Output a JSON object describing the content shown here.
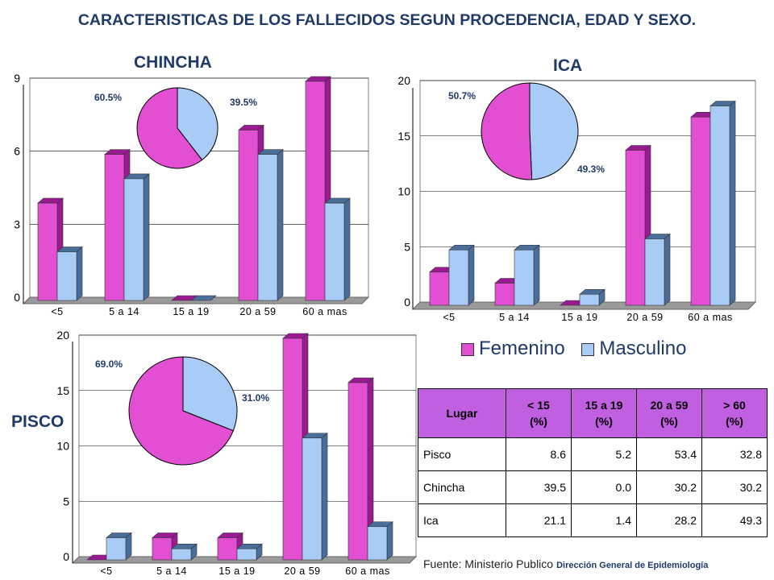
{
  "title": "CARACTERISTICAS DE LOS FALLECIDOS SEGUN PROCEDENCIA, EDAD Y SEXO.",
  "colors": {
    "femenino": "#E24FD3",
    "femenino_dark": "#9A1A92",
    "masculino": "#A9CCF7",
    "masculino_dark": "#4A6E9A",
    "title": "#1F3A68"
  },
  "legend": [
    "Femenino",
    "Masculino"
  ],
  "chart_data": [
    {
      "type": "bar",
      "title": "CHINCHA",
      "categories": [
        "<5",
        "5 a 14",
        "15 a 19",
        "20 a 59",
        "60 a mas"
      ],
      "series": [
        {
          "name": "Femenino",
          "values": [
            4,
            6,
            0,
            7,
            9
          ]
        },
        {
          "name": "Masculino",
          "values": [
            2,
            5,
            0,
            6,
            4
          ]
        }
      ],
      "ylim": [
        0,
        9
      ],
      "yticks": [
        "0",
        "3",
        "6",
        "9"
      ],
      "pie": {
        "values": [
          60.5,
          39.5
        ],
        "labels": [
          "60.5%",
          "39.5%"
        ]
      }
    },
    {
      "type": "bar",
      "title": "ICA",
      "categories": [
        "<5",
        "5 a 14",
        "15 a 19",
        "20 a 59",
        "60 a mas"
      ],
      "series": [
        {
          "name": "Femenino",
          "values": [
            3,
            2,
            0,
            14,
            17
          ]
        },
        {
          "name": "Masculino",
          "values": [
            5,
            5,
            1,
            6,
            18
          ]
        }
      ],
      "ylim": [
        0,
        20
      ],
      "yticks": [
        "0",
        "5",
        "10",
        "15",
        "20"
      ],
      "pie": {
        "values": [
          50.7,
          49.3
        ],
        "labels": [
          "50.7%",
          "49.3%"
        ]
      }
    },
    {
      "type": "bar",
      "title": "PISCO",
      "categories": [
        "<5",
        "5 a 14",
        "15 a 19",
        "20 a 59",
        "60 a mas"
      ],
      "series": [
        {
          "name": "Femenino",
          "values": [
            0,
            2,
            2,
            20,
            16
          ]
        },
        {
          "name": "Masculino",
          "values": [
            2,
            1,
            1,
            11,
            3
          ]
        }
      ],
      "ylim": [
        0,
        20
      ],
      "yticks": [
        "0",
        "5",
        "10",
        "15",
        "20"
      ],
      "pie": {
        "values": [
          69.0,
          31.0
        ],
        "labels": [
          "69.0%",
          "31.0%"
        ]
      }
    },
    {
      "type": "table",
      "headers": [
        [
          "Lugar"
        ],
        [
          "< 15",
          "(%)"
        ],
        [
          "15 a 19",
          "(%)"
        ],
        [
          "20 a 59",
          "(%)"
        ],
        [
          "> 60",
          "(%)"
        ]
      ],
      "rows": [
        [
          "Pisco",
          "8.6",
          "5.2",
          "53.4",
          "32.8"
        ],
        [
          "Chincha",
          "39.5",
          "0.0",
          "30.2",
          "30.2"
        ],
        [
          "Ica",
          "21.1",
          "1.4",
          "28.2",
          "49.3"
        ]
      ]
    }
  ],
  "source": {
    "text": "Fuente: Ministerio Publico",
    "org": "Dirección General de Epidemiología"
  }
}
